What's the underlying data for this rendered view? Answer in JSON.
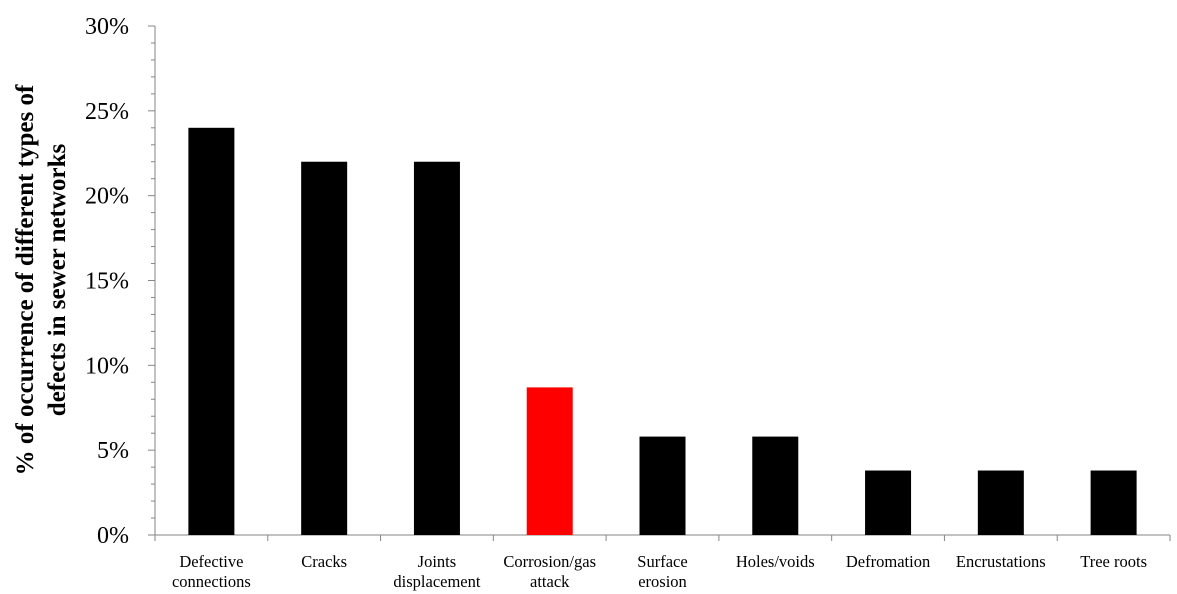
{
  "chart_data": {
    "type": "bar",
    "title": "",
    "xlabel": "",
    "ylabel_lines": [
      "% of occurrence of different types of",
      "defects in sewer networks"
    ],
    "categories": [
      [
        "Defective",
        "connections"
      ],
      [
        "Cracks"
      ],
      [
        "Joints",
        "displacement"
      ],
      [
        "Corrosion/gas",
        "attack"
      ],
      [
        "Surface",
        "erosion"
      ],
      [
        "Holes/voids"
      ],
      [
        "Defromation"
      ],
      [
        "Encrustations"
      ],
      [
        "Tree roots"
      ]
    ],
    "values": [
      0.24,
      0.22,
      0.22,
      0.087,
      0.058,
      0.058,
      0.038,
      0.038,
      0.038
    ],
    "colors": [
      "#000000",
      "#000000",
      "#000000",
      "#ff0000",
      "#000000",
      "#000000",
      "#000000",
      "#000000",
      "#000000"
    ],
    "ylim": [
      0,
      0.3
    ],
    "yticks": [
      0,
      0.05,
      0.1,
      0.15,
      0.2,
      0.25,
      0.3
    ],
    "ytick_labels": [
      "0%",
      "5%",
      "10%",
      "15%",
      "20%",
      "25%",
      "30%"
    ],
    "minor_ticks_per_major": 5,
    "grid": false,
    "legend": "none"
  }
}
